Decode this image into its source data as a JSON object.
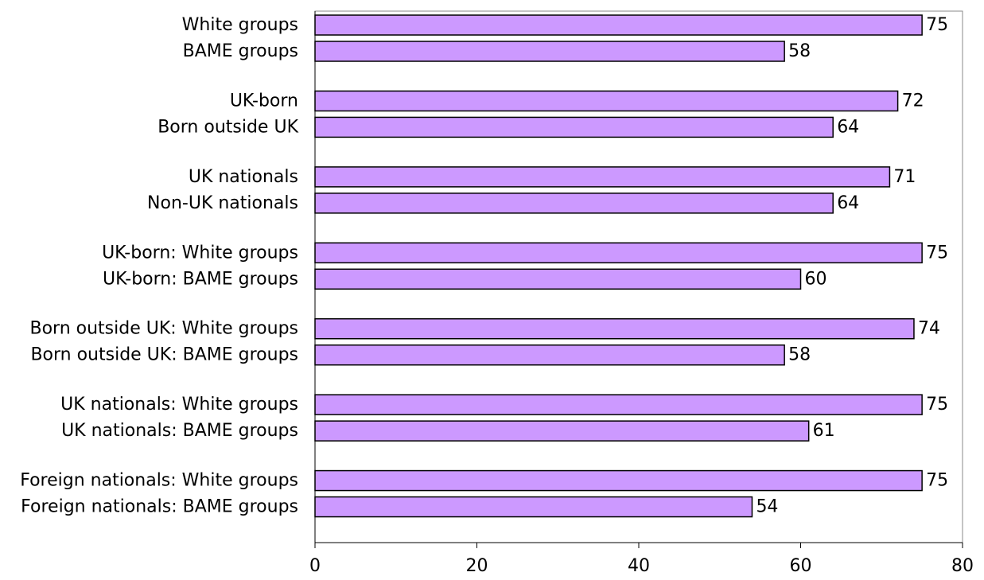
{
  "chart_data": {
    "type": "bar",
    "orientation": "horizontal",
    "categories": [
      "White groups",
      "BAME groups",
      "UK-born",
      "Born outside UK",
      "UK nationals",
      "Non-UK nationals",
      "UK-born: White groups",
      "UK-born: BAME groups",
      "Born outside UK: White groups",
      "Born outside UK: BAME groups",
      "UK nationals: White groups",
      "UK nationals: BAME groups",
      "Foreign nationals: White groups",
      "Foreign nationals: BAME groups"
    ],
    "values": [
      75,
      58,
      72,
      64,
      71,
      64,
      75,
      60,
      74,
      58,
      75,
      61,
      75,
      54
    ],
    "value_labels": [
      "75",
      "58",
      "72",
      "64",
      "71",
      "64",
      "75",
      "60",
      "74",
      "58",
      "75",
      "61",
      "75",
      "54"
    ],
    "x_ticks": [
      "0",
      "20",
      "40",
      "60",
      "80"
    ],
    "xlim": [
      0,
      80
    ],
    "title": "",
    "xlabel": "",
    "ylabel": "",
    "grid": false,
    "legend": "none",
    "bar_color": "#cc99ff",
    "bar_edge_color": "#000000"
  }
}
